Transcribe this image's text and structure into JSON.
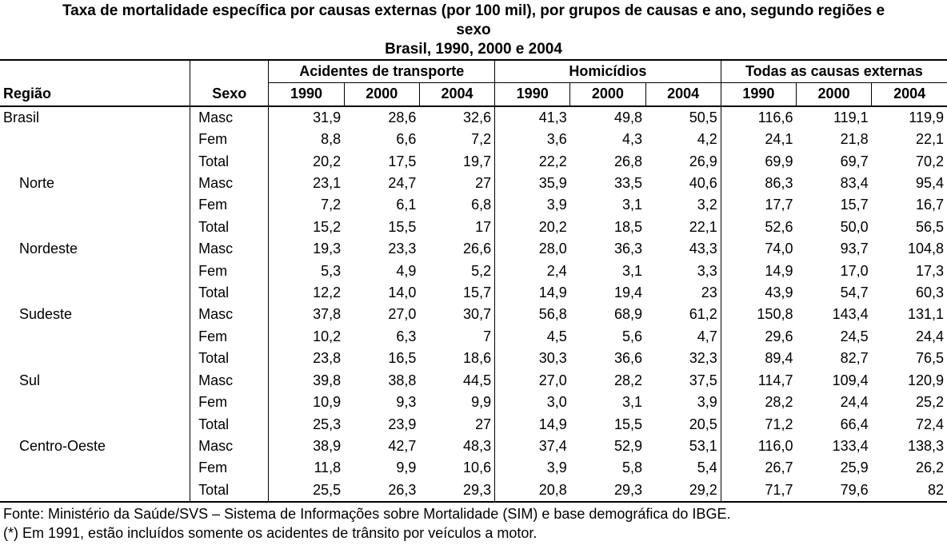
{
  "title": {
    "line1": "Taxa de mortalidade específica por causas externas (por 100 mil), por grupos de causas e ano, segundo regiões e",
    "line2": "sexo",
    "line3": "Brasil, 1990, 2000 e 2004"
  },
  "headers": {
    "regiao": "Região",
    "sexo": "Sexo",
    "groups": [
      "Acidentes de transporte",
      "Homicídios",
      "Todas as causas externas"
    ],
    "years": [
      "1990",
      "2000",
      "2004"
    ]
  },
  "regions": [
    {
      "name": "Brasil",
      "rows": [
        {
          "sexo": "Masc",
          "values": [
            "31,9",
            "28,6",
            "32,6",
            "41,3",
            "49,8",
            "50,5",
            "116,6",
            "119,1",
            "119,9"
          ]
        },
        {
          "sexo": "Fem",
          "values": [
            "8,8",
            "6,6",
            "7,2",
            "3,6",
            "4,3",
            "4,2",
            "24,1",
            "21,8",
            "22,1"
          ]
        },
        {
          "sexo": "Total",
          "values": [
            "20,2",
            "17,5",
            "19,7",
            "22,2",
            "26,8",
            "26,9",
            "69,9",
            "69,7",
            "70,2"
          ]
        }
      ]
    },
    {
      "name": "Norte",
      "rows": [
        {
          "sexo": "Masc",
          "values": [
            "23,1",
            "24,7",
            "27",
            "35,9",
            "33,5",
            "40,6",
            "86,3",
            "83,4",
            "95,4"
          ]
        },
        {
          "sexo": "Fem",
          "values": [
            "7,2",
            "6,1",
            "6,8",
            "3,9",
            "3,1",
            "3,2",
            "17,7",
            "15,7",
            "16,7"
          ]
        },
        {
          "sexo": "Total",
          "values": [
            "15,2",
            "15,5",
            "17",
            "20,2",
            "18,5",
            "22,1",
            "52,6",
            "50,0",
            "56,5"
          ]
        }
      ]
    },
    {
      "name": "Nordeste",
      "rows": [
        {
          "sexo": "Masc",
          "values": [
            "19,3",
            "23,3",
            "26,6",
            "28,0",
            "36,3",
            "43,3",
            "74,0",
            "93,7",
            "104,8"
          ]
        },
        {
          "sexo": "Fem",
          "values": [
            "5,3",
            "4,9",
            "5,2",
            "2,4",
            "3,1",
            "3,3",
            "14,9",
            "17,0",
            "17,3"
          ]
        },
        {
          "sexo": "Total",
          "values": [
            "12,2",
            "14,0",
            "15,7",
            "14,9",
            "19,4",
            "23",
            "43,9",
            "54,7",
            "60,3"
          ]
        }
      ]
    },
    {
      "name": "Sudeste",
      "rows": [
        {
          "sexo": "Masc",
          "values": [
            "37,8",
            "27,0",
            "30,7",
            "56,8",
            "68,9",
            "61,2",
            "150,8",
            "143,4",
            "131,1"
          ]
        },
        {
          "sexo": "Fem",
          "values": [
            "10,2",
            "6,3",
            "7",
            "4,5",
            "5,6",
            "4,7",
            "29,6",
            "24,5",
            "24,4"
          ]
        },
        {
          "sexo": "Total",
          "values": [
            "23,8",
            "16,5",
            "18,6",
            "30,3",
            "36,6",
            "32,3",
            "89,4",
            "82,7",
            "76,5"
          ]
        }
      ]
    },
    {
      "name": "Sul",
      "rows": [
        {
          "sexo": "Masc",
          "values": [
            "39,8",
            "38,8",
            "44,5",
            "27,0",
            "28,2",
            "37,5",
            "114,7",
            "109,4",
            "120,9"
          ]
        },
        {
          "sexo": "Fem",
          "values": [
            "10,9",
            "9,3",
            "9,9",
            "3,0",
            "3,1",
            "3,9",
            "28,2",
            "24,4",
            "25,2"
          ]
        },
        {
          "sexo": "Total",
          "values": [
            "25,3",
            "23,9",
            "27",
            "14,9",
            "15,5",
            "20,5",
            "71,2",
            "66,4",
            "72,4"
          ]
        }
      ]
    },
    {
      "name": "Centro-Oeste",
      "rows": [
        {
          "sexo": "Masc",
          "values": [
            "38,9",
            "42,7",
            "48,3",
            "37,4",
            "52,9",
            "53,1",
            "116,0",
            "133,4",
            "138,3"
          ]
        },
        {
          "sexo": "Fem",
          "values": [
            "11,8",
            "9,9",
            "10,6",
            "3,9",
            "5,8",
            "5,4",
            "26,7",
            "25,9",
            "26,2"
          ]
        },
        {
          "sexo": "Total",
          "values": [
            "25,5",
            "26,3",
            "29,3",
            "20,8",
            "29,3",
            "29,2",
            "71,7",
            "79,6",
            "82"
          ]
        }
      ]
    }
  ],
  "notes": {
    "source": "Fonte: Ministério da Saúde/SVS – Sistema de Informações sobre Mortalidade (SIM) e base demográfica do IBGE.",
    "footnote": "(*)  Em 1991, estão incluídos somente os acidentes de trânsito por veículos a motor."
  }
}
